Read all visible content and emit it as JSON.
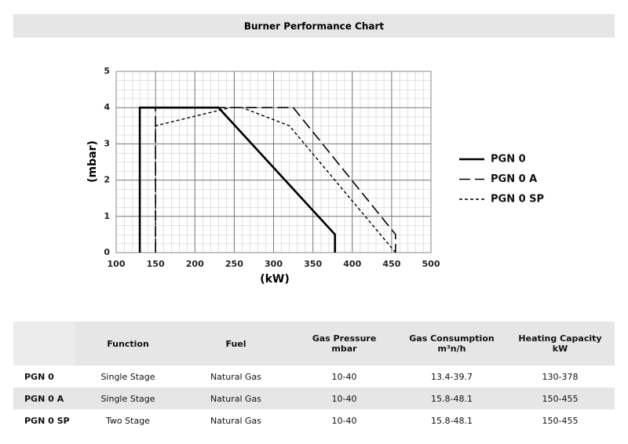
{
  "chart_data": {
    "type": "line",
    "title": "Burner Performance Chart",
    "x_label": "(kW)",
    "y_label": "(mbar)",
    "xlim": [
      100,
      500
    ],
    "xticks": [
      100,
      150,
      200,
      250,
      300,
      350,
      400,
      450,
      500
    ],
    "ylim": [
      0,
      5
    ],
    "yticks": [
      0,
      1,
      2,
      3,
      4,
      5
    ],
    "grid": true,
    "legend": "right",
    "series": [
      {
        "name": "PGN 0",
        "color": "#000000",
        "dash": "solid",
        "x": [
          130,
          130,
          230,
          378,
          378
        ],
        "values": [
          0,
          4,
          4,
          0.5,
          0
        ]
      },
      {
        "name": "PGN 0 A",
        "color": "#000000",
        "dash": "long",
        "x": [
          150,
          150,
          325,
          455,
          455
        ],
        "values": [
          0,
          4,
          4,
          0.5,
          0
        ]
      },
      {
        "name": "PGN 0 SP",
        "color": "#000000",
        "dash": "short",
        "x": [
          150,
          150,
          245,
          260,
          320,
          455
        ],
        "values": [
          0,
          3.5,
          4,
          4,
          3.5,
          0
        ]
      }
    ]
  },
  "table": {
    "columns": [
      [
        "Function"
      ],
      [
        "Fuel"
      ],
      [
        "Gas Pressure",
        "mbar"
      ],
      [
        "Gas Consumption",
        "m³n/h"
      ],
      [
        "Heating Capacity",
        "kW"
      ]
    ],
    "rows": [
      [
        "PGN 0",
        "Single Stage",
        "Natural Gas",
        "10-40",
        "13.4-39.7",
        "130-378"
      ],
      [
        "PGN 0 A",
        "Single Stage",
        "Natural Gas",
        "10-40",
        "15.8-48.1",
        "150-455"
      ],
      [
        "PGN 0 SP",
        "Two Stage",
        "Natural Gas",
        "10-40",
        "15.8-48.1",
        "150-455"
      ]
    ]
  }
}
